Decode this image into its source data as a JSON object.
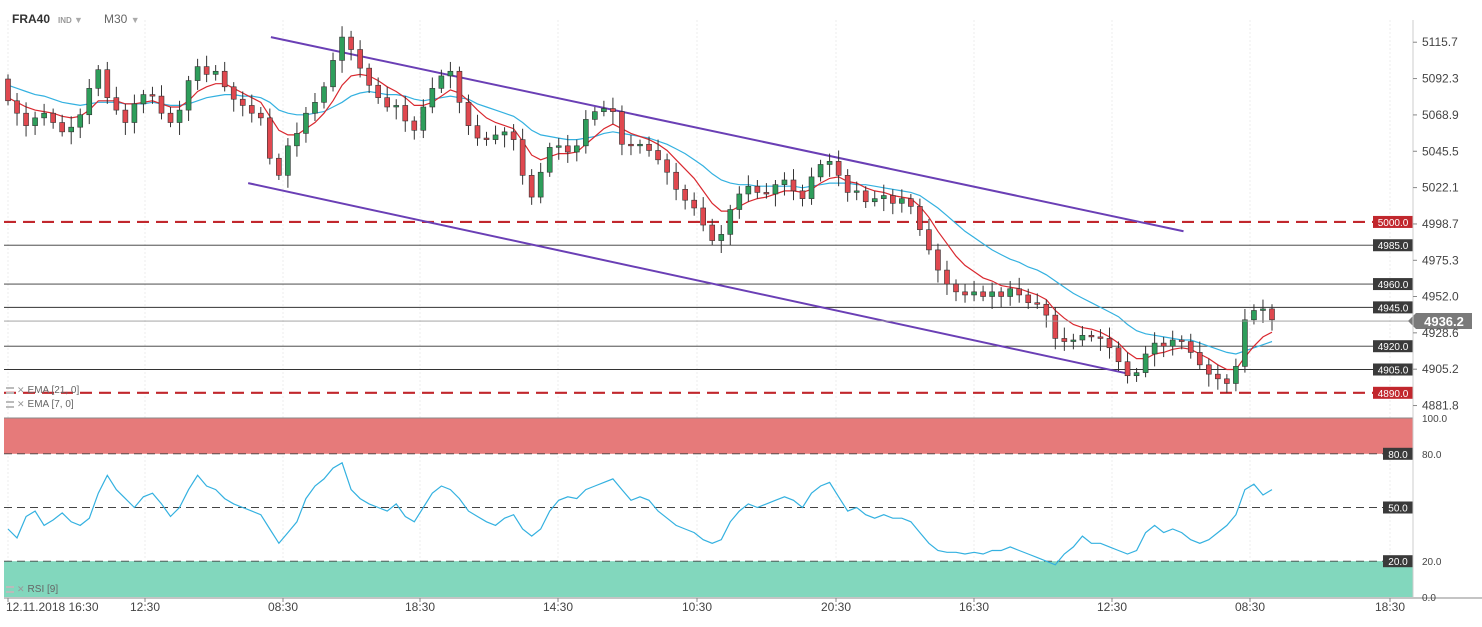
{
  "header": {
    "symbol": "FRA40",
    "type": "IND",
    "timeframe": "M30",
    "caret": "▼"
  },
  "legend": {
    "ema21": "EMA [21, 0]",
    "ema7": "EMA [7, 0]",
    "rsi": "RSI [9]",
    "close_glyph": "✕"
  },
  "colors": {
    "bull": "#2e9e5b",
    "bear": "#e0484f",
    "ema_fast": "#d9282f",
    "ema_slow": "#34b1e0",
    "channel": "#6a3fb5",
    "dashed_level": "#c1272d",
    "overbought_zone": "#e67a7a",
    "oversold_zone": "#82d7bd",
    "rsi_line": "#34b1e0"
  },
  "chart_data": [
    {
      "type": "candlestick",
      "instrument": "FRA40",
      "timeframe": "M30",
      "ylim": [
        4877,
        5130
      ],
      "y_ticks": [
        "5115.7",
        "5092.3",
        "5068.9",
        "5045.5",
        "5022.1",
        "4998.7",
        "4975.3",
        "4952.0",
        "4928.6",
        "4905.2",
        "4881.8"
      ],
      "x_ticks": [
        "12.11.2018  16:30",
        "12:30",
        "08:30",
        "18:30",
        "14:30",
        "10:30",
        "20:30",
        "16:30",
        "12:30",
        "08:30",
        "18:30"
      ],
      "current_price": "4936.2",
      "levels": [
        {
          "value": 5000.0,
          "label": "5000.0",
          "style": "dashed"
        },
        {
          "value": 4985.0,
          "label": "4985.0",
          "style": "solid"
        },
        {
          "value": 4960.0,
          "label": "4960.0",
          "style": "solid"
        },
        {
          "value": 4945.0,
          "label": "4945.0",
          "style": "solid"
        },
        {
          "value": 4920.0,
          "label": "4920.0",
          "style": "solid"
        },
        {
          "value": 4905.0,
          "label": "4905.0",
          "style": "solid"
        },
        {
          "value": 4890.0,
          "label": "4890.0",
          "style": "dashed"
        }
      ],
      "channel": {
        "upper": [
          {
            "bar": 0.208,
            "value": 5119
          },
          {
            "bar": 0.93,
            "value": 4994
          }
        ],
        "lower": [
          {
            "bar": 0.19,
            "value": 5025
          },
          {
            "bar": 0.888,
            "value": 4902
          }
        ]
      },
      "closes": [
        5078,
        5070,
        5062,
        5067,
        5070,
        5064,
        5058,
        5061,
        5069,
        5086,
        5098,
        5080,
        5072,
        5064,
        5076,
        5082,
        5081,
        5070,
        5064,
        5072,
        5091,
        5100,
        5095,
        5097,
        5087,
        5079,
        5075,
        5070,
        5067,
        5041,
        5030,
        5049,
        5057,
        5070,
        5077,
        5087,
        5104,
        5119,
        5111,
        5099,
        5088,
        5080,
        5074,
        5075,
        5065,
        5059,
        5074,
        5086,
        5094,
        5097,
        5077,
        5062,
        5054,
        5053,
        5056,
        5058,
        5053,
        5030,
        5016,
        5032,
        5048,
        5049,
        5045,
        5049,
        5066,
        5071,
        5073,
        5071,
        5050,
        5049,
        5050,
        5046,
        5040,
        5032,
        5021,
        5014,
        5009,
        4998,
        4988,
        4992,
        5008,
        5018,
        5023,
        5019,
        5018,
        5024,
        5027,
        5020,
        5015,
        5029,
        5037,
        5039,
        5030,
        5019,
        5020,
        5013,
        5015,
        5017,
        5012,
        5015,
        5010,
        4995,
        4982,
        4969,
        4960,
        4955,
        4953,
        4955,
        4952,
        4955,
        4952,
        4957,
        4953,
        4948,
        4947,
        4940,
        4925,
        4923,
        4924,
        4927,
        4926,
        4925,
        4919,
        4910,
        4901,
        4903,
        4915,
        4922,
        4920,
        4924,
        4923,
        4916,
        4908,
        4902,
        4899,
        4896,
        4907,
        4937,
        4943,
        4944,
        4937
      ],
      "opens": [
        5092,
        5078,
        5070,
        5062,
        5067,
        5070,
        5064,
        5058,
        5061,
        5069,
        5086,
        5098,
        5080,
        5072,
        5064,
        5076,
        5082,
        5081,
        5070,
        5064,
        5072,
        5091,
        5100,
        5095,
        5097,
        5087,
        5079,
        5075,
        5070,
        5067,
        5041,
        5030,
        5049,
        5057,
        5070,
        5077,
        5087,
        5104,
        5119,
        5111,
        5099,
        5088,
        5080,
        5074,
        5075,
        5065,
        5059,
        5074,
        5086,
        5094,
        5097,
        5077,
        5062,
        5054,
        5053,
        5056,
        5058,
        5053,
        5030,
        5016,
        5032,
        5048,
        5049,
        5045,
        5049,
        5066,
        5071,
        5073,
        5071,
        5050,
        5049,
        5050,
        5046,
        5040,
        5032,
        5021,
        5014,
        5009,
        4998,
        4988,
        4992,
        5008,
        5018,
        5023,
        5019,
        5018,
        5024,
        5027,
        5020,
        5015,
        5029,
        5037,
        5039,
        5030,
        5019,
        5020,
        5013,
        5015,
        5017,
        5012,
        5015,
        5010,
        4995,
        4982,
        4969,
        4960,
        4955,
        4953,
        4955,
        4952,
        4955,
        4952,
        4957,
        4953,
        4948,
        4947,
        4940,
        4925,
        4923,
        4924,
        4927,
        4926,
        4925,
        4919,
        4910,
        4901,
        4903,
        4915,
        4922,
        4920,
        4924,
        4923,
        4916,
        4908,
        4902,
        4899,
        4896,
        4907,
        4937,
        4943,
        4944
      ],
      "ema_fast": [
        5080,
        5077,
        5074,
        5072,
        5071,
        5070,
        5068,
        5067,
        5068,
        5072,
        5078,
        5078,
        5078,
        5076,
        5076,
        5077,
        5078,
        5076,
        5074,
        5074,
        5078,
        5084,
        5087,
        5089,
        5089,
        5086,
        5083,
        5080,
        5077,
        5068,
        5059,
        5056,
        5056,
        5060,
        5064,
        5070,
        5078,
        5088,
        5094,
        5095,
        5094,
        5091,
        5087,
        5084,
        5080,
        5075,
        5075,
        5077,
        5081,
        5085,
        5083,
        5078,
        5072,
        5067,
        5064,
        5062,
        5060,
        5052,
        5043,
        5040,
        5042,
        5044,
        5044,
        5045,
        5050,
        5055,
        5060,
        5063,
        5060,
        5057,
        5055,
        5053,
        5050,
        5046,
        5040,
        5034,
        5028,
        5020,
        5012,
        5007,
        5007,
        5010,
        5013,
        5015,
        5016,
        5018,
        5020,
        5020,
        5019,
        5021,
        5025,
        5028,
        5029,
        5026,
        5025,
        5022,
        5020,
        5019,
        5017,
        5016,
        5015,
        5010,
        5003,
        4994,
        4986,
        4978,
        4972,
        4968,
        4964,
        4962,
        4959,
        4958,
        4957,
        4955,
        4953,
        4950,
        4943,
        4938,
        4934,
        4932,
        4931,
        4929,
        4926,
        4922,
        4916,
        4912,
        4912,
        4915,
        4916,
        4918,
        4919,
        4918,
        4915,
        4912,
        4908,
        4905,
        4905,
        4913,
        4920,
        4926,
        4929
      ],
      "ema_slow": [
        5088,
        5086,
        5084,
        5082,
        5081,
        5079,
        5077,
        5076,
        5075,
        5076,
        5077,
        5077,
        5077,
        5076,
        5076,
        5076,
        5077,
        5076,
        5075,
        5075,
        5076,
        5078,
        5080,
        5081,
        5082,
        5082,
        5081,
        5081,
        5080,
        5077,
        5072,
        5070,
        5069,
        5069,
        5070,
        5071,
        5074,
        5077,
        5081,
        5083,
        5084,
        5083,
        5082,
        5082,
        5081,
        5079,
        5078,
        5079,
        5080,
        5081,
        5080,
        5079,
        5076,
        5074,
        5072,
        5070,
        5068,
        5064,
        5059,
        5056,
        5055,
        5054,
        5053,
        5053,
        5054,
        5055,
        5057,
        5058,
        5057,
        5056,
        5055,
        5054,
        5052,
        5050,
        5047,
        5044,
        5040,
        5036,
        5031,
        5027,
        5025,
        5024,
        5024,
        5023,
        5023,
        5023,
        5023,
        5023,
        5022,
        5023,
        5024,
        5025,
        5025,
        5025,
        5024,
        5024,
        5023,
        5022,
        5021,
        5020,
        5019,
        5017,
        5013,
        5009,
        5004,
        4999,
        4994,
        4990,
        4986,
        4982,
        4979,
        4976,
        4974,
        4971,
        4969,
        4966,
        4962,
        4958,
        4954,
        4951,
        4948,
        4945,
        4942,
        4939,
        4934,
        4930,
        4928,
        4927,
        4926,
        4925,
        4924,
        4924,
        4922,
        4920,
        4918,
        4916,
        4915,
        4917,
        4919,
        4921,
        4923
      ]
    },
    {
      "type": "line",
      "name": "RSI [9]",
      "ylim": [
        0,
        100
      ],
      "y_ticks": [
        "100.0",
        "80.0",
        "20.0",
        "0.0"
      ],
      "levels": [
        {
          "value": 80,
          "label": "80.0"
        },
        {
          "value": 50,
          "label": "50.0"
        },
        {
          "value": 20,
          "label": "20.0"
        }
      ],
      "values": [
        38,
        33,
        45,
        48,
        40,
        43,
        47,
        42,
        40,
        44,
        58,
        68,
        60,
        55,
        50,
        56,
        58,
        52,
        45,
        50,
        60,
        68,
        62,
        60,
        55,
        52,
        50,
        48,
        46,
        38,
        30,
        36,
        42,
        55,
        62,
        66,
        72,
        75,
        60,
        55,
        52,
        50,
        48,
        52,
        45,
        42,
        50,
        58,
        62,
        60,
        55,
        48,
        45,
        42,
        40,
        44,
        46,
        38,
        34,
        38,
        48,
        54,
        56,
        55,
        60,
        62,
        64,
        66,
        60,
        54,
        56,
        54,
        48,
        44,
        40,
        38,
        36,
        32,
        30,
        32,
        42,
        48,
        52,
        50,
        52,
        54,
        56,
        54,
        50,
        58,
        62,
        64,
        56,
        48,
        50,
        46,
        44,
        46,
        44,
        44,
        42,
        36,
        30,
        26,
        25,
        25,
        24,
        25,
        24,
        26,
        26,
        28,
        26,
        24,
        22,
        20,
        18,
        24,
        28,
        34,
        30,
        30,
        28,
        26,
        24,
        26,
        36,
        40,
        36,
        38,
        36,
        32,
        30,
        32,
        36,
        40,
        46,
        60,
        63,
        57,
        60
      ]
    }
  ]
}
